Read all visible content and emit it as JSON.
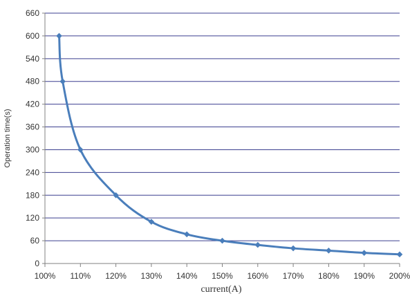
{
  "chart_data": {
    "type": "line",
    "ylabel": "Operation time(s)",
    "xlabel": "current(A)",
    "ylim": [
      0,
      660
    ],
    "yticks": [
      0,
      60,
      120,
      180,
      240,
      300,
      360,
      420,
      480,
      540,
      600,
      660
    ],
    "xlim": [
      100,
      200
    ],
    "xticks": [
      "100%",
      "110%",
      "120%",
      "130%",
      "140%",
      "150%",
      "160%",
      "170%",
      "180%",
      "190%",
      "200%"
    ],
    "grid": "horizontal",
    "series": [
      {
        "color": "#4a7ebb",
        "points": [
          {
            "x": 104,
            "y": 600
          },
          {
            "x": 105,
            "y": 480
          },
          {
            "x": 110,
            "y": 300
          },
          {
            "x": 120,
            "y": 180
          },
          {
            "x": 130,
            "y": 110
          },
          {
            "x": 140,
            "y": 77
          },
          {
            "x": 150,
            "y": 60
          },
          {
            "x": 160,
            "y": 49
          },
          {
            "x": 170,
            "y": 40
          },
          {
            "x": 180,
            "y": 34
          },
          {
            "x": 190,
            "y": 28
          },
          {
            "x": 200,
            "y": 24
          }
        ]
      }
    ]
  }
}
